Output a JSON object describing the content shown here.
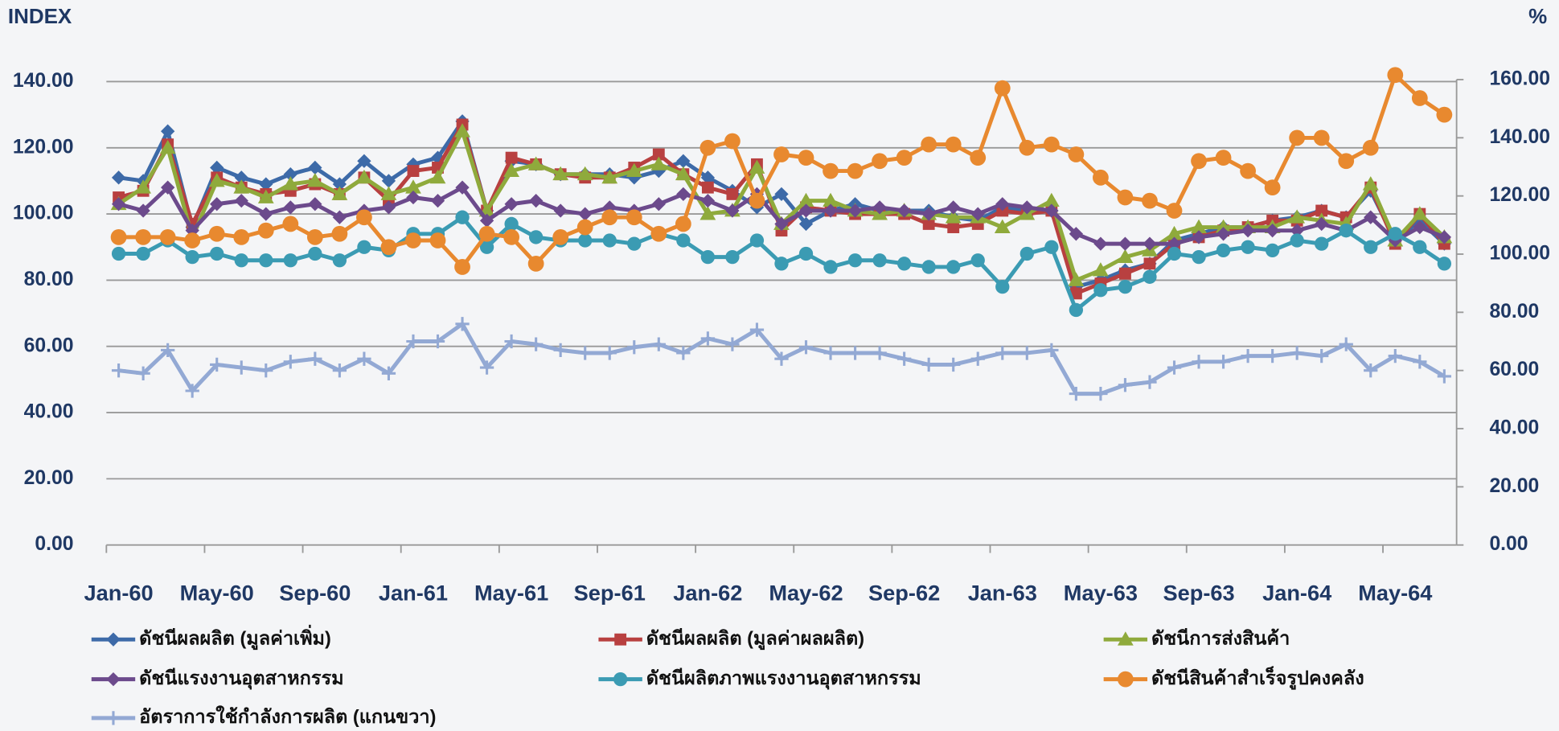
{
  "chart_data": {
    "type": "line",
    "y_label": "INDEX",
    "y2_label": "%",
    "categories": [
      "Jan-60",
      null,
      null,
      null,
      "May-60",
      null,
      null,
      null,
      "Sep-60",
      null,
      null,
      null,
      "Jan-61",
      null,
      null,
      null,
      "May-61",
      null,
      null,
      null,
      "Sep-61",
      null,
      null,
      null,
      "Jan-62",
      null,
      null,
      null,
      "May-62",
      null,
      null,
      null,
      "Sep-62",
      null,
      null,
      null,
      "Jan-63",
      null,
      null,
      null,
      "May-63",
      null,
      null,
      null,
      "Sep-63",
      null,
      null,
      null,
      "Jan-64",
      null,
      null,
      null,
      "May-64",
      null,
      null
    ],
    "ylim": [
      0,
      140
    ],
    "yticks": [
      {
        "value": 0,
        "label": "0.00"
      },
      {
        "value": 20,
        "label": "20.00"
      },
      {
        "value": 40,
        "label": "40.00"
      },
      {
        "value": 60,
        "label": "60.00"
      },
      {
        "value": 80,
        "label": "80.00"
      },
      {
        "value": 100,
        "label": "100.00"
      },
      {
        "value": 120,
        "label": "120.00"
      },
      {
        "value": 140,
        "label": "140.00"
      }
    ],
    "y2lim": [
      0,
      160
    ],
    "y2ticks": [
      {
        "value": 0,
        "label": "0.00"
      },
      {
        "value": 20,
        "label": "20.00"
      },
      {
        "value": 40,
        "label": "40.00"
      },
      {
        "value": 60,
        "label": "60.00"
      },
      {
        "value": 80,
        "label": "80.00"
      },
      {
        "value": 100,
        "label": "100.00"
      },
      {
        "value": 120,
        "label": "120.00"
      },
      {
        "value": 140,
        "label": "140.00"
      },
      {
        "value": 160,
        "label": "160.00"
      }
    ],
    "grid": true,
    "legend": "bottom",
    "series": [
      {
        "name": "ดัชนีผลผลิต (มูลค่าเพิ่ม)",
        "color": "#3d6aa8",
        "marker": "diamond",
        "values": [
          111,
          110,
          125,
          96,
          114,
          111,
          109,
          112,
          114,
          109,
          116,
          110,
          115,
          117,
          128,
          101,
          116,
          115,
          112,
          112,
          112,
          111,
          113,
          116,
          111,
          107,
          102,
          106,
          97,
          101,
          103,
          101,
          101,
          101,
          99,
          98,
          102,
          101,
          101,
          78,
          80,
          83,
          85,
          92,
          94,
          96,
          96,
          98,
          99,
          101,
          99,
          107,
          92,
          98,
          91
        ]
      },
      {
        "name": "ดัชนีผลผลิต (มูลค่าผลผลิต)",
        "color": "#b84040",
        "marker": "square",
        "values": [
          105,
          107,
          121,
          97,
          111,
          108,
          106,
          107,
          109,
          106,
          111,
          104,
          113,
          114,
          127,
          101,
          117,
          115,
          112,
          111,
          111,
          114,
          118,
          112,
          108,
          106,
          115,
          95,
          102,
          101,
          100,
          100,
          100,
          97,
          96,
          97,
          101,
          100,
          101,
          76,
          79,
          82,
          85,
          91,
          93,
          95,
          96,
          98,
          98,
          101,
          99,
          108,
          91,
          100,
          91
        ]
      },
      {
        "name": "ดัชนีการส่งสินค้า",
        "color": "#8faa3c",
        "marker": "triangle",
        "values": [
          103,
          108,
          120,
          93,
          110,
          108,
          105,
          109,
          110,
          106,
          111,
          106,
          108,
          111,
          125,
          101,
          113,
          115,
          112,
          112,
          111,
          113,
          115,
          112,
          100,
          101,
          114,
          97,
          104,
          104,
          101,
          100,
          101,
          100,
          99,
          99,
          96,
          100,
          104,
          80,
          83,
          87,
          89,
          94,
          96,
          96,
          96,
          96,
          99,
          98,
          97,
          109,
          92,
          100,
          93
        ]
      },
      {
        "name": "ดัชนีแรงงานอุตสาหกรรม",
        "color": "#6c4a8c",
        "marker": "diamond",
        "values": [
          103,
          101,
          108,
          95,
          103,
          104,
          100,
          102,
          103,
          99,
          101,
          102,
          105,
          104,
          108,
          98,
          103,
          104,
          101,
          100,
          102,
          101,
          103,
          106,
          104,
          101,
          106,
          97,
          101,
          101,
          101,
          102,
          101,
          100,
          102,
          100,
          103,
          102,
          101,
          94,
          91,
          91,
          91,
          91,
          93,
          94,
          95,
          95,
          95,
          97,
          95,
          99,
          92,
          96,
          93
        ]
      },
      {
        "name": "ดัชนีผลิตภาพแรงงานอุตสาหกรรม",
        "color": "#3b9bb3",
        "marker": "circle",
        "values": [
          88,
          88,
          92,
          87,
          88,
          86,
          86,
          86,
          88,
          86,
          90,
          89,
          94,
          94,
          99,
          90,
          97,
          93,
          92,
          92,
          92,
          91,
          94,
          92,
          87,
          87,
          92,
          85,
          88,
          84,
          86,
          86,
          85,
          84,
          84,
          86,
          78,
          88,
          90,
          71,
          77,
          78,
          81,
          88,
          87,
          89,
          90,
          89,
          92,
          91,
          95,
          90,
          94,
          90,
          85
        ]
      },
      {
        "name": "ดัชนีสินค้าสำเร็จรูปคงคลัง",
        "color": "#e8892f",
        "marker": "bigcircle",
        "values": [
          93,
          93,
          93,
          92,
          94,
          93,
          95,
          97,
          93,
          94,
          99,
          90,
          92,
          92,
          84,
          94,
          93,
          85,
          93,
          96,
          99,
          99,
          94,
          97,
          120,
          122,
          104,
          118,
          117,
          113,
          113,
          116,
          117,
          121,
          121,
          117,
          138,
          120,
          121,
          118,
          111,
          105,
          104,
          101,
          116,
          117,
          113,
          108,
          123,
          123,
          116,
          120,
          142,
          135,
          130
        ]
      },
      {
        "name": "อัตราการใช้กำลังการผลิต (แกนขวา)",
        "color": "#93a9d4",
        "marker": "plus",
        "axis": "y2",
        "values": [
          60,
          59,
          67,
          53,
          62,
          61,
          60,
          63,
          64,
          60,
          64,
          59,
          70,
          70,
          76,
          61,
          70,
          69,
          67,
          66,
          66,
          68,
          69,
          66,
          71,
          69,
          74,
          64,
          68,
          66,
          66,
          66,
          64,
          62,
          62,
          64,
          66,
          66,
          67,
          52,
          52,
          55,
          56,
          61,
          63,
          63,
          65,
          65,
          66,
          65,
          69,
          60,
          65,
          63,
          58
        ]
      }
    ]
  }
}
